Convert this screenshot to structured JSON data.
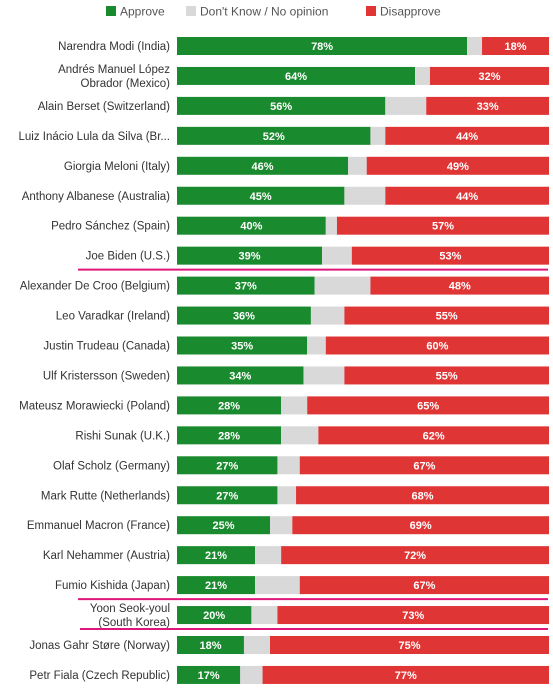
{
  "chart_data": {
    "type": "bar",
    "orientation": "horizontal",
    "stacked": true,
    "normalized_to": 100,
    "legend": {
      "placement": "top",
      "entries": [
        {
          "name": "Approve",
          "color": "#1a8a2e"
        },
        {
          "name": "Don't Know / No opinion",
          "color": "#d9d9d9"
        },
        {
          "name": "Disapprove",
          "color": "#e03535"
        }
      ]
    },
    "categories": [
      {
        "label": "Narendra Modi (India)",
        "approve": 78,
        "approve_label": "78%",
        "disapprove": 18,
        "disapprove_label": "18%",
        "highlight": false
      },
      {
        "label": "Andrés Manuel López Obrador (Mexico)",
        "lines": [
          "Andrés Manuel López",
          "Obrador (Mexico)"
        ],
        "approve": 64,
        "approve_label": "64%",
        "disapprove": 32,
        "disapprove_label": "32%",
        "highlight": false
      },
      {
        "label": "Alain Berset (Switzerland)",
        "approve": 56,
        "approve_label": "56%",
        "disapprove": 33,
        "disapprove_label": "33%",
        "highlight": false
      },
      {
        "label": "Luiz Inácio Lula da Silva (Br...",
        "approve": 52,
        "approve_label": "52%",
        "disapprove": 44,
        "disapprove_label": "44%",
        "highlight": false
      },
      {
        "label": "Giorgia Meloni (Italy)",
        "approve": 46,
        "approve_label": "46%",
        "disapprove": 49,
        "disapprove_label": "49%",
        "highlight": false
      },
      {
        "label": "Anthony Albanese (Australia)",
        "approve": 45,
        "approve_label": "45%",
        "disapprove": 44,
        "disapprove_label": "44%",
        "highlight": false
      },
      {
        "label": "Pedro Sánchez (Spain)",
        "approve": 40,
        "approve_label": "40%",
        "disapprove": 57,
        "disapprove_label": "57%",
        "highlight": false
      },
      {
        "label": "Joe Biden (U.S.)",
        "approve": 39,
        "approve_label": "39%",
        "disapprove": 53,
        "disapprove_label": "53%",
        "highlight": true
      },
      {
        "label": "Alexander De Croo (Belgium)",
        "approve": 37,
        "approve_label": "37%",
        "disapprove": 48,
        "disapprove_label": "48%",
        "highlight": false
      },
      {
        "label": "Leo Varadkar (Ireland)",
        "approve": 36,
        "approve_label": "36%",
        "disapprove": 55,
        "disapprove_label": "55%",
        "highlight": false
      },
      {
        "label": "Justin Trudeau (Canada)",
        "approve": 35,
        "approve_label": "35%",
        "disapprove": 60,
        "disapprove_label": "60%",
        "highlight": false
      },
      {
        "label": "Ulf Kristersson (Sweden)",
        "approve": 34,
        "approve_label": "34%",
        "disapprove": 55,
        "disapprove_label": "55%",
        "highlight": false
      },
      {
        "label": "Mateusz Morawiecki (Poland)",
        "approve": 28,
        "approve_label": "28%",
        "disapprove": 65,
        "disapprove_label": "65%",
        "highlight": false
      },
      {
        "label": "Rishi Sunak (U.K.)",
        "approve": 28,
        "approve_label": "28%",
        "disapprove": 62,
        "disapprove_label": "62%",
        "highlight": false
      },
      {
        "label": "Olaf Scholz (Germany)",
        "approve": 27,
        "approve_label": "27%",
        "disapprove": 67,
        "disapprove_label": "67%",
        "highlight": false
      },
      {
        "label": "Mark Rutte (Netherlands)",
        "approve": 27,
        "approve_label": "27%",
        "disapprove": 68,
        "disapprove_label": "68%",
        "highlight": false
      },
      {
        "label": "Emmanuel Macron (France)",
        "approve": 25,
        "approve_label": "25%",
        "disapprove": 69,
        "disapprove_label": "69%",
        "highlight": false
      },
      {
        "label": "Karl Nehammer (Austria)",
        "approve": 21,
        "approve_label": "21%",
        "disapprove": 72,
        "disapprove_label": "72%",
        "highlight": false
      },
      {
        "label": "Fumio Kishida (Japan)",
        "approve": 21,
        "approve_label": "21%",
        "disapprove": 67,
        "disapprove_label": "67%",
        "highlight": true
      },
      {
        "label": "Yoon Seok-youl (South Korea)",
        "lines": [
          "Yoon Seok-youl",
          "(South Korea)"
        ],
        "approve": 20,
        "approve_label": "20%",
        "disapprove": 73,
        "disapprove_label": "73%",
        "highlight": true
      },
      {
        "label": "Jonas Gahr Støre (Norway)",
        "approve": 18,
        "approve_label": "18%",
        "disapprove": 75,
        "disapprove_label": "75%",
        "highlight": false
      },
      {
        "label": "Petr Fiala (Czech Republic)",
        "approve": 17,
        "approve_label": "17%",
        "disapprove": 77,
        "disapprove_label": "77%",
        "highlight": false
      }
    ],
    "colors": {
      "approve": "#1a8a2e",
      "no_opinion": "#d9d9d9",
      "disapprove": "#e03535",
      "highlight_line": "#e0177a",
      "label_text": "#333333",
      "legend_text": "#555555"
    }
  }
}
